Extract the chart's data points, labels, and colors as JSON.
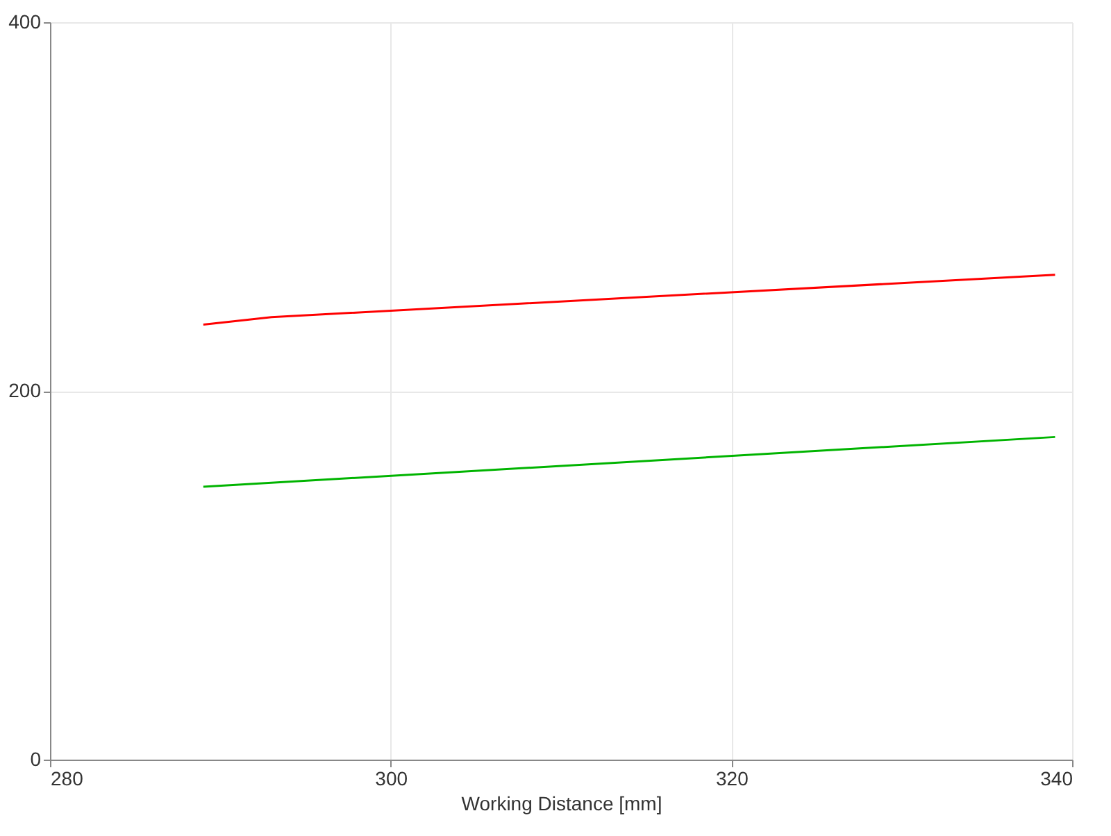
{
  "chart_data": {
    "type": "line",
    "xlabel": "Working Distance [mm]",
    "x": [
      289,
      293,
      339
    ],
    "series": [
      {
        "color": "#ff0000",
        "values": [
          236,
          240,
          263
        ]
      },
      {
        "color": "#00b400",
        "x": [
          289,
          339
        ],
        "values": [
          148,
          175
        ]
      }
    ],
    "xlim": [
      280,
      340
    ],
    "xticks": [
      280,
      300,
      320,
      340
    ],
    "ylim": [
      0,
      400
    ],
    "yticks": [
      0,
      200,
      400
    ],
    "grid": true,
    "marker": "none",
    "line_style": "solid",
    "legend": false
  }
}
